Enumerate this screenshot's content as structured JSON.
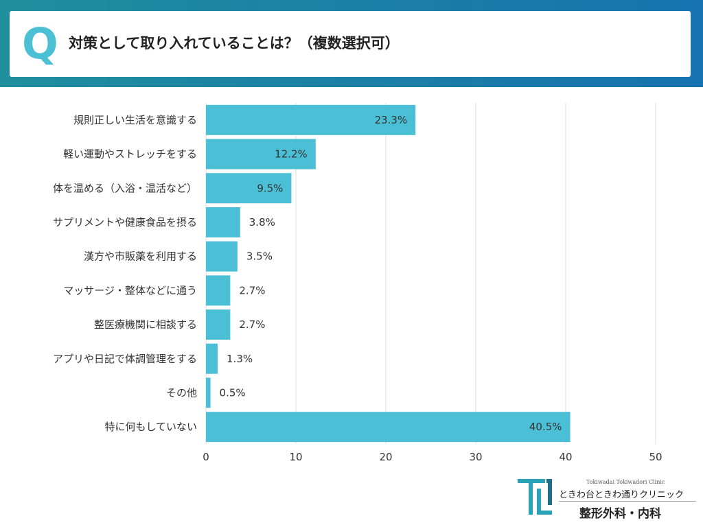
{
  "header": {
    "q_letter": "Q",
    "question": "対策として取り入れていることは？（複数選択可）"
  },
  "chart_data": {
    "type": "bar",
    "orientation": "horizontal",
    "title": "対策として取り入れていることは？（複数選択可）",
    "categories": [
      "規則正しい生活を意識する",
      "軽い運動やストレッチをする",
      "体を温める（入浴・温活など）",
      "サプリメントや健康食品を摂る",
      "漢方や市販薬を利用する",
      "マッサージ・整体などに通う",
      "整医療機関に相談する",
      "アプリや日記で体調管理をする",
      "その他",
      "特に何もしていない"
    ],
    "values": [
      23.3,
      12.2,
      9.5,
      3.8,
      3.5,
      2.7,
      2.7,
      1.3,
      0.5,
      40.5
    ],
    "value_labels": [
      "23.3%",
      "12.2%",
      "9.5%",
      "3.8%",
      "3.5%",
      "2.7%",
      "2.7%",
      "1.3%",
      "0.5%",
      "40.5%"
    ],
    "xlim": [
      0,
      50
    ],
    "xticks": [
      0,
      10,
      20,
      30,
      40,
      50
    ],
    "xtick_labels": [
      "0",
      "10",
      "20",
      "30",
      "40",
      "50"
    ],
    "xlabel": "",
    "ylabel": "",
    "grid": true,
    "bar_color": "#4bbfd6"
  },
  "logo": {
    "sub": "Tokiwadai Tokiwadori Clinic",
    "name": "ときわ台ときわ通りクリニック",
    "dept": "整形外科・内科",
    "color": "#2aa3b8"
  }
}
